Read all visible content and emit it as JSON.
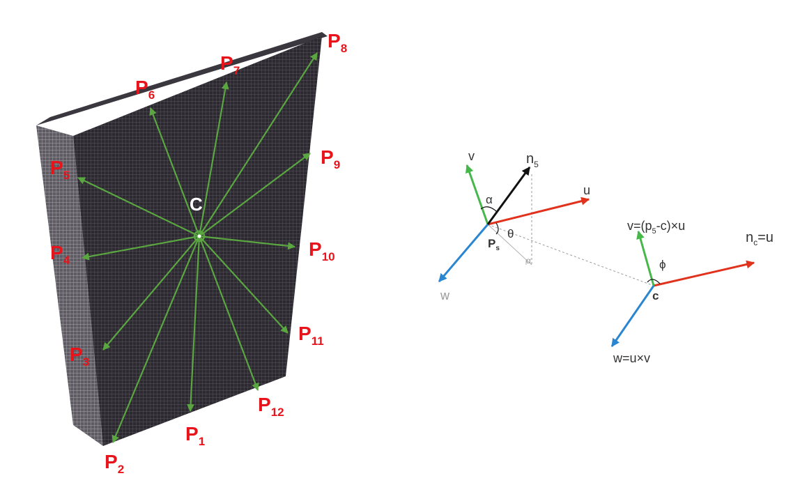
{
  "left_figure": {
    "center_label": "C",
    "points": [
      {
        "id": "P1",
        "main": "P",
        "sub": "1"
      },
      {
        "id": "P2",
        "main": "P",
        "sub": "2"
      },
      {
        "id": "P3",
        "main": "P",
        "sub": "3"
      },
      {
        "id": "P4",
        "main": "P",
        "sub": "4"
      },
      {
        "id": "P5",
        "main": "P",
        "sub": "5"
      },
      {
        "id": "P6",
        "main": "P",
        "sub": "6"
      },
      {
        "id": "P7",
        "main": "P",
        "sub": "7"
      },
      {
        "id": "P8",
        "main": "P",
        "sub": "8"
      },
      {
        "id": "P9",
        "main": "P",
        "sub": "9"
      },
      {
        "id": "P10",
        "main": "P",
        "sub": "10"
      },
      {
        "id": "P11",
        "main": "P",
        "sub": "11"
      },
      {
        "id": "P12",
        "main": "P",
        "sub": "12"
      }
    ],
    "colors": {
      "arrow": "#5aa641",
      "label": "#e8141c",
      "surface": "#2c2930",
      "surface_edge": "#77747a"
    }
  },
  "right_figure": {
    "labels": {
      "v_left": "v",
      "n5_main": "n",
      "n5_sub": "5",
      "u_left": "u",
      "alpha": "α",
      "theta": "θ",
      "ps_main": "P",
      "ps_sub": "s",
      "w_left": "w",
      "small_a": "α",
      "v_right_main": "v=(p",
      "v_right_sub": "5",
      "v_right_rest": "-c)×u",
      "nc_main": "n",
      "nc_sub": "c",
      "nc_rest": "=u",
      "phi": "ϕ",
      "c_right": "c",
      "w_right": "w=u×v"
    },
    "colors": {
      "u": "#e0321c",
      "v": "#46b84a",
      "w": "#2a86d1",
      "n": "#111111",
      "dashed": "#9a9a9a"
    }
  }
}
